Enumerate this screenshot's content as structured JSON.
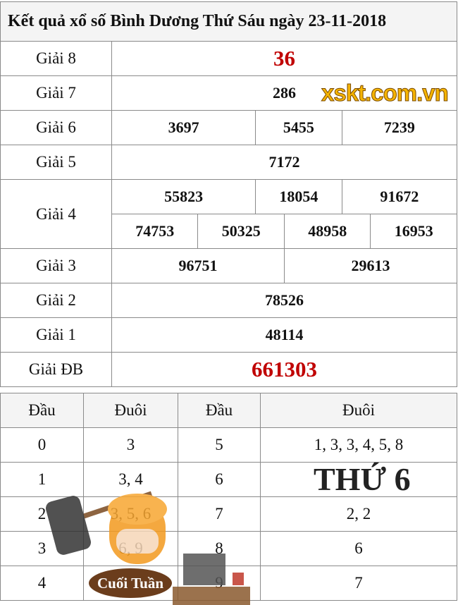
{
  "title": "Kết quả xổ số Bình Dương Thứ Sáu ngày 23-11-2018",
  "prizes": {
    "g8": {
      "label": "Giải 8",
      "values": [
        "36"
      ]
    },
    "g7": {
      "label": "Giải 7",
      "values": [
        "286"
      ]
    },
    "g6": {
      "label": "Giải 6",
      "values": [
        "3697",
        "5455",
        "7239"
      ]
    },
    "g5": {
      "label": "Giải 5",
      "values": [
        "7172"
      ]
    },
    "g4": {
      "label": "Giải 4",
      "values": [
        "55823",
        "18054",
        "91672",
        "74753",
        "50325",
        "48958",
        "16953"
      ]
    },
    "g3": {
      "label": "Giải 3",
      "values": [
        "96751",
        "29613"
      ]
    },
    "g2": {
      "label": "Giải 2",
      "values": [
        "78526"
      ]
    },
    "g1": {
      "label": "Giải 1",
      "values": [
        "48114"
      ]
    },
    "db": {
      "label": "Giải ĐB",
      "values": [
        "661303"
      ]
    }
  },
  "loto": {
    "headers": [
      "Đầu",
      "Đuôi",
      "Đầu",
      "Đuôi"
    ],
    "rows": [
      {
        "d1": "0",
        "t1": "3",
        "d2": "5",
        "t2": "1, 3, 3, 4, 5, 8"
      },
      {
        "d1": "1",
        "t1": "3, 4",
        "d2": "6",
        "t2": ""
      },
      {
        "d1": "2",
        "t1": "3, 5, 6",
        "d2": "7",
        "t2": "2, 2"
      },
      {
        "d1": "3",
        "t1": "6, 9",
        "d2": "8",
        "t2": "6"
      },
      {
        "d1": "4",
        "t1": "",
        "d2": "9",
        "t2": "7"
      }
    ]
  },
  "overlay": {
    "bubble_line1": "Cuối",
    "bubble_line2": "Tuần",
    "day": "THỨ 6",
    "logo": "xskt.com.vn"
  },
  "colors": {
    "special": "#c00000",
    "g8": "#c00000"
  }
}
